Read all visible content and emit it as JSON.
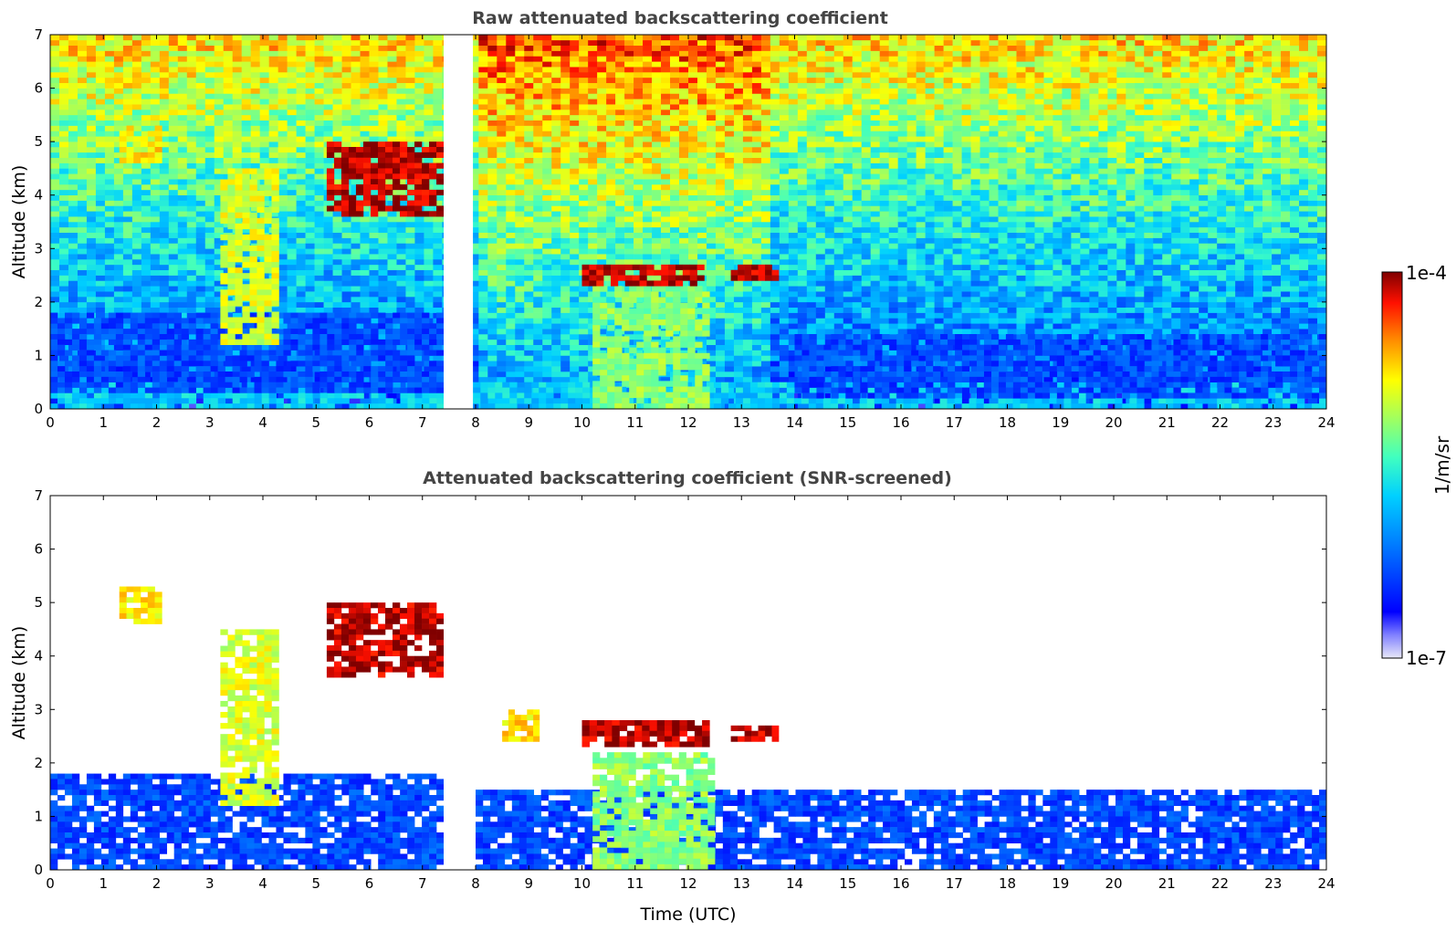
{
  "chart_data": [
    {
      "type": "heatmap",
      "title": "Raw attenuated backscattering coefficient",
      "xlabel": "",
      "ylabel": "Altitude (km)",
      "xlim": [
        0,
        24
      ],
      "ylim": [
        0,
        7
      ],
      "x_ticks": [
        "0",
        "1",
        "2",
        "3",
        "4",
        "5",
        "6",
        "7",
        "8",
        "9",
        "10",
        "11",
        "12",
        "13",
        "14",
        "15",
        "16",
        "17",
        "18",
        "19",
        "20",
        "21",
        "22",
        "23",
        "24"
      ],
      "y_ticks": [
        "0",
        "1",
        "2",
        "3",
        "4",
        "5",
        "6",
        "7"
      ],
      "data_gaps": [
        [
          7.4,
          7.95
        ]
      ],
      "layers": [
        {
          "name": "surface",
          "x": [
            0,
            24
          ],
          "alt": [
            0,
            0.5
          ],
          "level": "mid-low"
        },
        {
          "name": "boundary layer",
          "x": [
            0,
            7.4
          ],
          "alt": [
            0.3,
            1.8
          ],
          "level": "low"
        },
        {
          "name": "boundary layer",
          "x": [
            14,
            24
          ],
          "alt": [
            0.2,
            1.4
          ],
          "level": "low"
        },
        {
          "name": "precipitation",
          "x": [
            10.2,
            12.4
          ],
          "alt": [
            0,
            2.3
          ],
          "level": "mid"
        },
        {
          "name": "cirrus",
          "x": [
            1.3,
            2.1
          ],
          "alt": [
            4.6,
            5.3
          ],
          "level": "high"
        },
        {
          "name": "fall streak",
          "x": [
            3.2,
            4.3
          ],
          "alt": [
            1.2,
            4.5
          ],
          "level": "mid-high"
        },
        {
          "name": "cloud layer",
          "x": [
            5.2,
            7.4
          ],
          "alt": [
            3.6,
            5.0
          ],
          "level": "very high"
        },
        {
          "name": "cloud layer",
          "x": [
            10,
            12.3
          ],
          "alt": [
            2.3,
            2.7
          ],
          "level": "very high"
        },
        {
          "name": "cloud layer",
          "x": [
            12.8,
            13.7
          ],
          "alt": [
            2.4,
            2.7
          ],
          "level": "very high"
        }
      ]
    },
    {
      "type": "heatmap",
      "title": "Attenuated backscattering coefficient (SNR-screened)",
      "xlabel": "Time (UTC)",
      "ylabel": "Altitude (km)",
      "xlim": [
        0,
        24
      ],
      "ylim": [
        0,
        7
      ],
      "x_ticks": [
        "0",
        "1",
        "2",
        "3",
        "4",
        "5",
        "6",
        "7",
        "8",
        "9",
        "10",
        "11",
        "12",
        "13",
        "14",
        "15",
        "16",
        "17",
        "18",
        "19",
        "20",
        "21",
        "22",
        "23",
        "24"
      ],
      "y_ticks": [
        "0",
        "1",
        "2",
        "3",
        "4",
        "5",
        "6",
        "7"
      ],
      "data_gaps": [
        [
          7.4,
          7.95
        ]
      ],
      "layers": [
        {
          "name": "boundary layer",
          "x": [
            0,
            7.4
          ],
          "alt": [
            0,
            1.8
          ],
          "level": "low"
        },
        {
          "name": "boundary layer",
          "x": [
            8,
            24
          ],
          "alt": [
            0,
            1.5
          ],
          "level": "low"
        },
        {
          "name": "precipitation",
          "x": [
            10.2,
            12.5
          ],
          "alt": [
            0,
            2.2
          ],
          "level": "mid"
        },
        {
          "name": "cirrus",
          "x": [
            1.3,
            2.1
          ],
          "alt": [
            4.6,
            5.3
          ],
          "level": "high"
        },
        {
          "name": "fall streak",
          "x": [
            3.2,
            4.3
          ],
          "alt": [
            1.2,
            4.5
          ],
          "level": "mid-high"
        },
        {
          "name": "cloud layer",
          "x": [
            5.2,
            7.4
          ],
          "alt": [
            3.6,
            5.0
          ],
          "level": "very high"
        },
        {
          "name": "cloud layer",
          "x": [
            8.5,
            9.2
          ],
          "alt": [
            2.4,
            3.0
          ],
          "level": "high"
        },
        {
          "name": "cloud layer",
          "x": [
            10,
            12.4
          ],
          "alt": [
            2.3,
            2.8
          ],
          "level": "very high"
        },
        {
          "name": "cloud layer",
          "x": [
            12.8,
            13.7
          ],
          "alt": [
            2.4,
            2.7
          ],
          "level": "very high"
        }
      ]
    }
  ],
  "colorbar": {
    "max_label": "1e-4",
    "min_label": "1e-7",
    "unit_label": "1/m/sr",
    "scale": "log",
    "range": [
      1e-07,
      0.0001
    ]
  }
}
